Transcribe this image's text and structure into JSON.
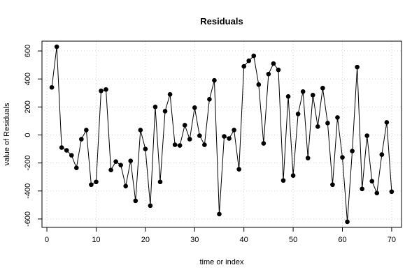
{
  "chart_data": {
    "type": "line",
    "title": "Residuals",
    "xlabel": "time or index",
    "ylabel": "value of Residuals",
    "xlim": [
      -1,
      72
    ],
    "ylim": [
      -660,
      670
    ],
    "xticks": [
      0,
      10,
      20,
      30,
      40,
      50,
      60,
      70
    ],
    "yticks": [
      -600,
      -400,
      -200,
      0,
      200,
      400,
      600
    ],
    "grid": true,
    "series": [
      {
        "marker": "filled-circle",
        "line_color": "#000000",
        "x": [
          1,
          2,
          3,
          4,
          5,
          6,
          7,
          8,
          9,
          10,
          11,
          12,
          13,
          14,
          15,
          16,
          17,
          18,
          19,
          20,
          21,
          22,
          23,
          24,
          25,
          26,
          27,
          28,
          29,
          30,
          31,
          32,
          33,
          34,
          35,
          36,
          37,
          38,
          39,
          40,
          41,
          42,
          43,
          44,
          45,
          46,
          47,
          48,
          49,
          50,
          51,
          52,
          53,
          54,
          55,
          56,
          57,
          58,
          59,
          60,
          61,
          62,
          63,
          64,
          65,
          66,
          67,
          68,
          69,
          70
        ],
        "values": [
          340,
          630,
          -90,
          -110,
          -145,
          -235,
          -30,
          35,
          -355,
          -335,
          315,
          325,
          -250,
          -190,
          -215,
          -365,
          -185,
          -470,
          35,
          -100,
          -505,
          200,
          -335,
          170,
          290,
          -70,
          -75,
          70,
          -30,
          195,
          -5,
          -70,
          255,
          390,
          -565,
          -10,
          -25,
          35,
          -245,
          490,
          530,
          565,
          360,
          -60,
          435,
          510,
          465,
          -325,
          275,
          -290,
          150,
          310,
          -165,
          285,
          60,
          335,
          85,
          -355,
          125,
          -160,
          -620,
          -115,
          485,
          -385,
          -5,
          -330,
          -415,
          -140,
          90,
          -405
        ]
      }
    ]
  }
}
